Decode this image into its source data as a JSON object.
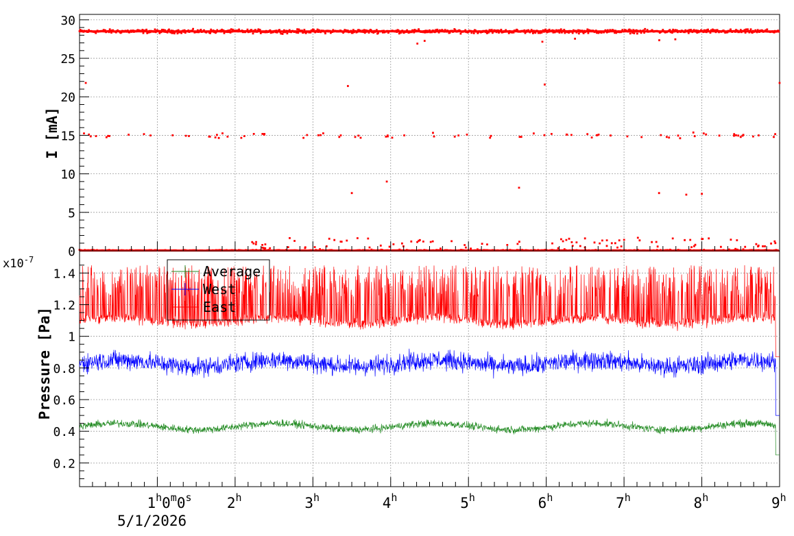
{
  "chart_data": [
    {
      "type": "scatter",
      "panel": "current",
      "ylabel": "I [mA]",
      "ylim": [
        0,
        30.7
      ],
      "yticks": [
        "0",
        "5",
        "10",
        "15",
        "20",
        "25",
        "30"
      ],
      "xlim_hours": [
        0,
        9
      ],
      "grid": true,
      "series": [
        {
          "color": "#ff0000",
          "bands_mA": [
            28.5,
            15.0,
            0.5,
            0.0
          ],
          "outliers": [
            {
              "x_hours": 0.08,
              "y": 21.8
            },
            {
              "x_hours": 3.45,
              "y": 21.4
            },
            {
              "x_hours": 5.98,
              "y": 21.6
            },
            {
              "x_hours": 9.0,
              "y": 21.8
            },
            {
              "x_hours": 3.5,
              "y": 7.5
            },
            {
              "x_hours": 3.95,
              "y": 9.0
            },
            {
              "x_hours": 5.65,
              "y": 8.2
            },
            {
              "x_hours": 7.45,
              "y": 7.5
            },
            {
              "x_hours": 7.8,
              "y": 7.3
            },
            {
              "x_hours": 8.0,
              "y": 7.4
            }
          ]
        }
      ]
    },
    {
      "type": "line",
      "panel": "pressure",
      "ylabel": "Pressure [Pa]",
      "yscale_label": "x10",
      "yscale_exp": "-7",
      "ylim": [
        0.05,
        1.54
      ],
      "yticks": [
        "0.2",
        "0.4",
        "0.6",
        "0.8",
        "1",
        "1.2",
        "1.4"
      ],
      "xlim_hours": [
        0,
        9
      ],
      "grid": true,
      "legend": "top-left",
      "series": [
        {
          "name": "Average",
          "color": "#228b22",
          "typical": 0.43,
          "range": [
            0.3,
            0.53
          ]
        },
        {
          "name": "West",
          "color": "#0000ff",
          "typical": 0.83,
          "range": [
            0.55,
            1.05
          ]
        },
        {
          "name": "East",
          "color": "#ff0000",
          "typical": 1.1,
          "range": [
            0.92,
            1.45
          ]
        }
      ]
    }
  ],
  "x_axis": {
    "ticks": [
      {
        "hour": 1,
        "label": "1",
        "sup": "h",
        "extra": "0",
        "extra_sup": "m",
        "extra2": "0",
        "extra2_sup": "s"
      },
      {
        "hour": 2,
        "label": "2",
        "sup": "h"
      },
      {
        "hour": 3,
        "label": "3",
        "sup": "h"
      },
      {
        "hour": 4,
        "label": "4",
        "sup": "h"
      },
      {
        "hour": 5,
        "label": "5",
        "sup": "h"
      },
      {
        "hour": 6,
        "label": "6",
        "sup": "h"
      },
      {
        "hour": 7,
        "label": "7",
        "sup": "h"
      },
      {
        "hour": 8,
        "label": "8",
        "sup": "h"
      },
      {
        "hour": 9,
        "label": "9",
        "sup": "h"
      }
    ],
    "date_label": "5/1/2026"
  },
  "colors": {
    "red": "#ff0000",
    "blue": "#0000ff",
    "green": "#228b22",
    "grid": "#9a9a9a"
  }
}
